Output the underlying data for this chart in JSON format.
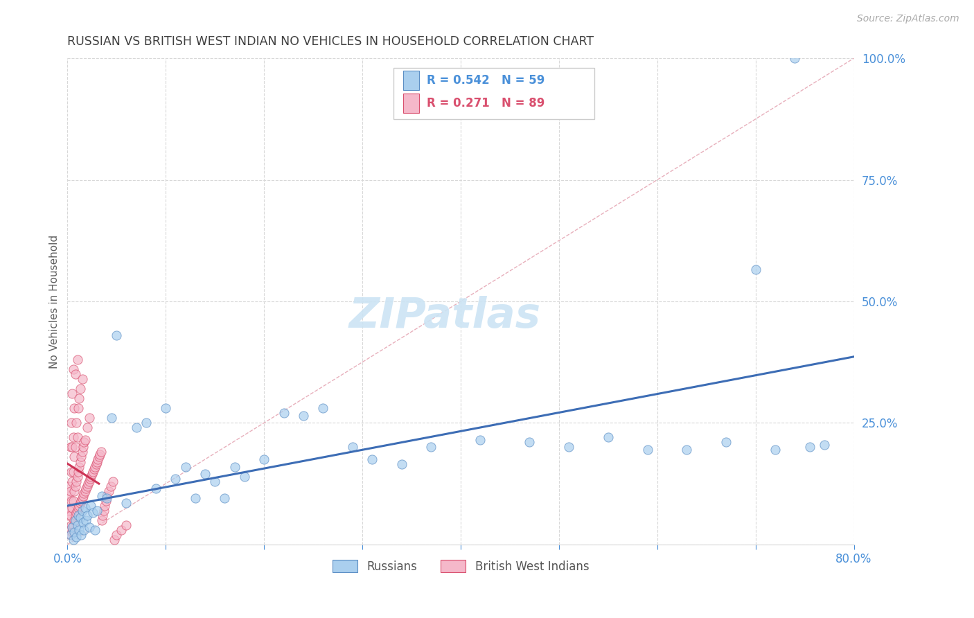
{
  "title": "RUSSIAN VS BRITISH WEST INDIAN NO VEHICLES IN HOUSEHOLD CORRELATION CHART",
  "source": "Source: ZipAtlas.com",
  "ylabel": "No Vehicles in Household",
  "xlim": [
    0.0,
    0.8
  ],
  "ylim": [
    0.0,
    1.0
  ],
  "xticks": [
    0.0,
    0.1,
    0.2,
    0.3,
    0.4,
    0.5,
    0.6,
    0.7,
    0.8
  ],
  "yticks": [
    0.0,
    0.25,
    0.5,
    0.75,
    1.0
  ],
  "legend_r_russian": "0.542",
  "legend_n_russian": "59",
  "legend_r_bwi": "0.271",
  "legend_n_bwi": "89",
  "russian_color": "#aacfee",
  "russian_edge": "#5b8ec4",
  "bwi_color": "#f5b8ca",
  "bwi_edge": "#d94f6e",
  "russian_line_color": "#3d6db5",
  "bwi_line_color": "#cc3355",
  "diagonal_color": "#e8b0bc",
  "diagonal_style": "--",
  "watermark": "ZIPatlas",
  "axis_color": "#4a90d9",
  "title_color": "#404040",
  "ylabel_color": "#606060",
  "grid_color": "#d8d8d8",
  "source_color": "#aaaaaa",
  "legend_label_russian": "Russians",
  "legend_label_bwi": "British West Indians",
  "russian_x": [
    0.003,
    0.005,
    0.006,
    0.007,
    0.008,
    0.009,
    0.01,
    0.011,
    0.012,
    0.013,
    0.014,
    0.015,
    0.016,
    0.017,
    0.018,
    0.019,
    0.02,
    0.022,
    0.024,
    0.026,
    0.028,
    0.03,
    0.035,
    0.04,
    0.045,
    0.05,
    0.06,
    0.07,
    0.08,
    0.09,
    0.1,
    0.11,
    0.12,
    0.13,
    0.14,
    0.15,
    0.16,
    0.17,
    0.18,
    0.2,
    0.22,
    0.24,
    0.26,
    0.29,
    0.31,
    0.34,
    0.37,
    0.42,
    0.47,
    0.51,
    0.55,
    0.59,
    0.63,
    0.67,
    0.7,
    0.72,
    0.74,
    0.755,
    0.77
  ],
  "russian_y": [
    0.02,
    0.035,
    0.01,
    0.025,
    0.05,
    0.015,
    0.04,
    0.06,
    0.03,
    0.055,
    0.02,
    0.07,
    0.045,
    0.03,
    0.075,
    0.05,
    0.06,
    0.035,
    0.08,
    0.065,
    0.03,
    0.07,
    0.1,
    0.095,
    0.26,
    0.43,
    0.085,
    0.24,
    0.25,
    0.115,
    0.28,
    0.135,
    0.16,
    0.095,
    0.145,
    0.13,
    0.095,
    0.16,
    0.14,
    0.175,
    0.27,
    0.265,
    0.28,
    0.2,
    0.175,
    0.165,
    0.2,
    0.215,
    0.21,
    0.2,
    0.22,
    0.195,
    0.195,
    0.21,
    0.565,
    0.195,
    1.0,
    0.2,
    0.205
  ],
  "bwi_x": [
    0.001,
    0.001,
    0.002,
    0.002,
    0.002,
    0.003,
    0.003,
    0.003,
    0.003,
    0.004,
    0.004,
    0.004,
    0.004,
    0.005,
    0.005,
    0.005,
    0.005,
    0.005,
    0.006,
    0.006,
    0.006,
    0.006,
    0.006,
    0.007,
    0.007,
    0.007,
    0.007,
    0.008,
    0.008,
    0.008,
    0.008,
    0.009,
    0.009,
    0.009,
    0.01,
    0.01,
    0.01,
    0.01,
    0.011,
    0.011,
    0.011,
    0.012,
    0.012,
    0.012,
    0.013,
    0.013,
    0.013,
    0.014,
    0.014,
    0.015,
    0.015,
    0.015,
    0.016,
    0.016,
    0.017,
    0.017,
    0.018,
    0.018,
    0.019,
    0.02,
    0.02,
    0.021,
    0.022,
    0.022,
    0.023,
    0.024,
    0.025,
    0.026,
    0.027,
    0.028,
    0.029,
    0.03,
    0.031,
    0.032,
    0.033,
    0.034,
    0.035,
    0.036,
    0.037,
    0.038,
    0.039,
    0.04,
    0.042,
    0.044,
    0.046,
    0.048,
    0.05,
    0.055,
    0.06
  ],
  "bwi_y": [
    0.06,
    0.1,
    0.03,
    0.07,
    0.12,
    0.02,
    0.06,
    0.11,
    0.2,
    0.04,
    0.09,
    0.15,
    0.25,
    0.025,
    0.075,
    0.13,
    0.2,
    0.31,
    0.04,
    0.09,
    0.15,
    0.22,
    0.36,
    0.05,
    0.11,
    0.18,
    0.28,
    0.06,
    0.12,
    0.2,
    0.35,
    0.065,
    0.13,
    0.25,
    0.07,
    0.14,
    0.22,
    0.38,
    0.075,
    0.15,
    0.28,
    0.08,
    0.16,
    0.3,
    0.085,
    0.17,
    0.32,
    0.09,
    0.18,
    0.095,
    0.19,
    0.34,
    0.1,
    0.2,
    0.105,
    0.21,
    0.11,
    0.215,
    0.115,
    0.12,
    0.24,
    0.125,
    0.13,
    0.26,
    0.135,
    0.14,
    0.145,
    0.15,
    0.155,
    0.16,
    0.165,
    0.17,
    0.175,
    0.18,
    0.185,
    0.19,
    0.05,
    0.06,
    0.07,
    0.08,
    0.09,
    0.1,
    0.11,
    0.12,
    0.13,
    0.01,
    0.02,
    0.03,
    0.04
  ]
}
